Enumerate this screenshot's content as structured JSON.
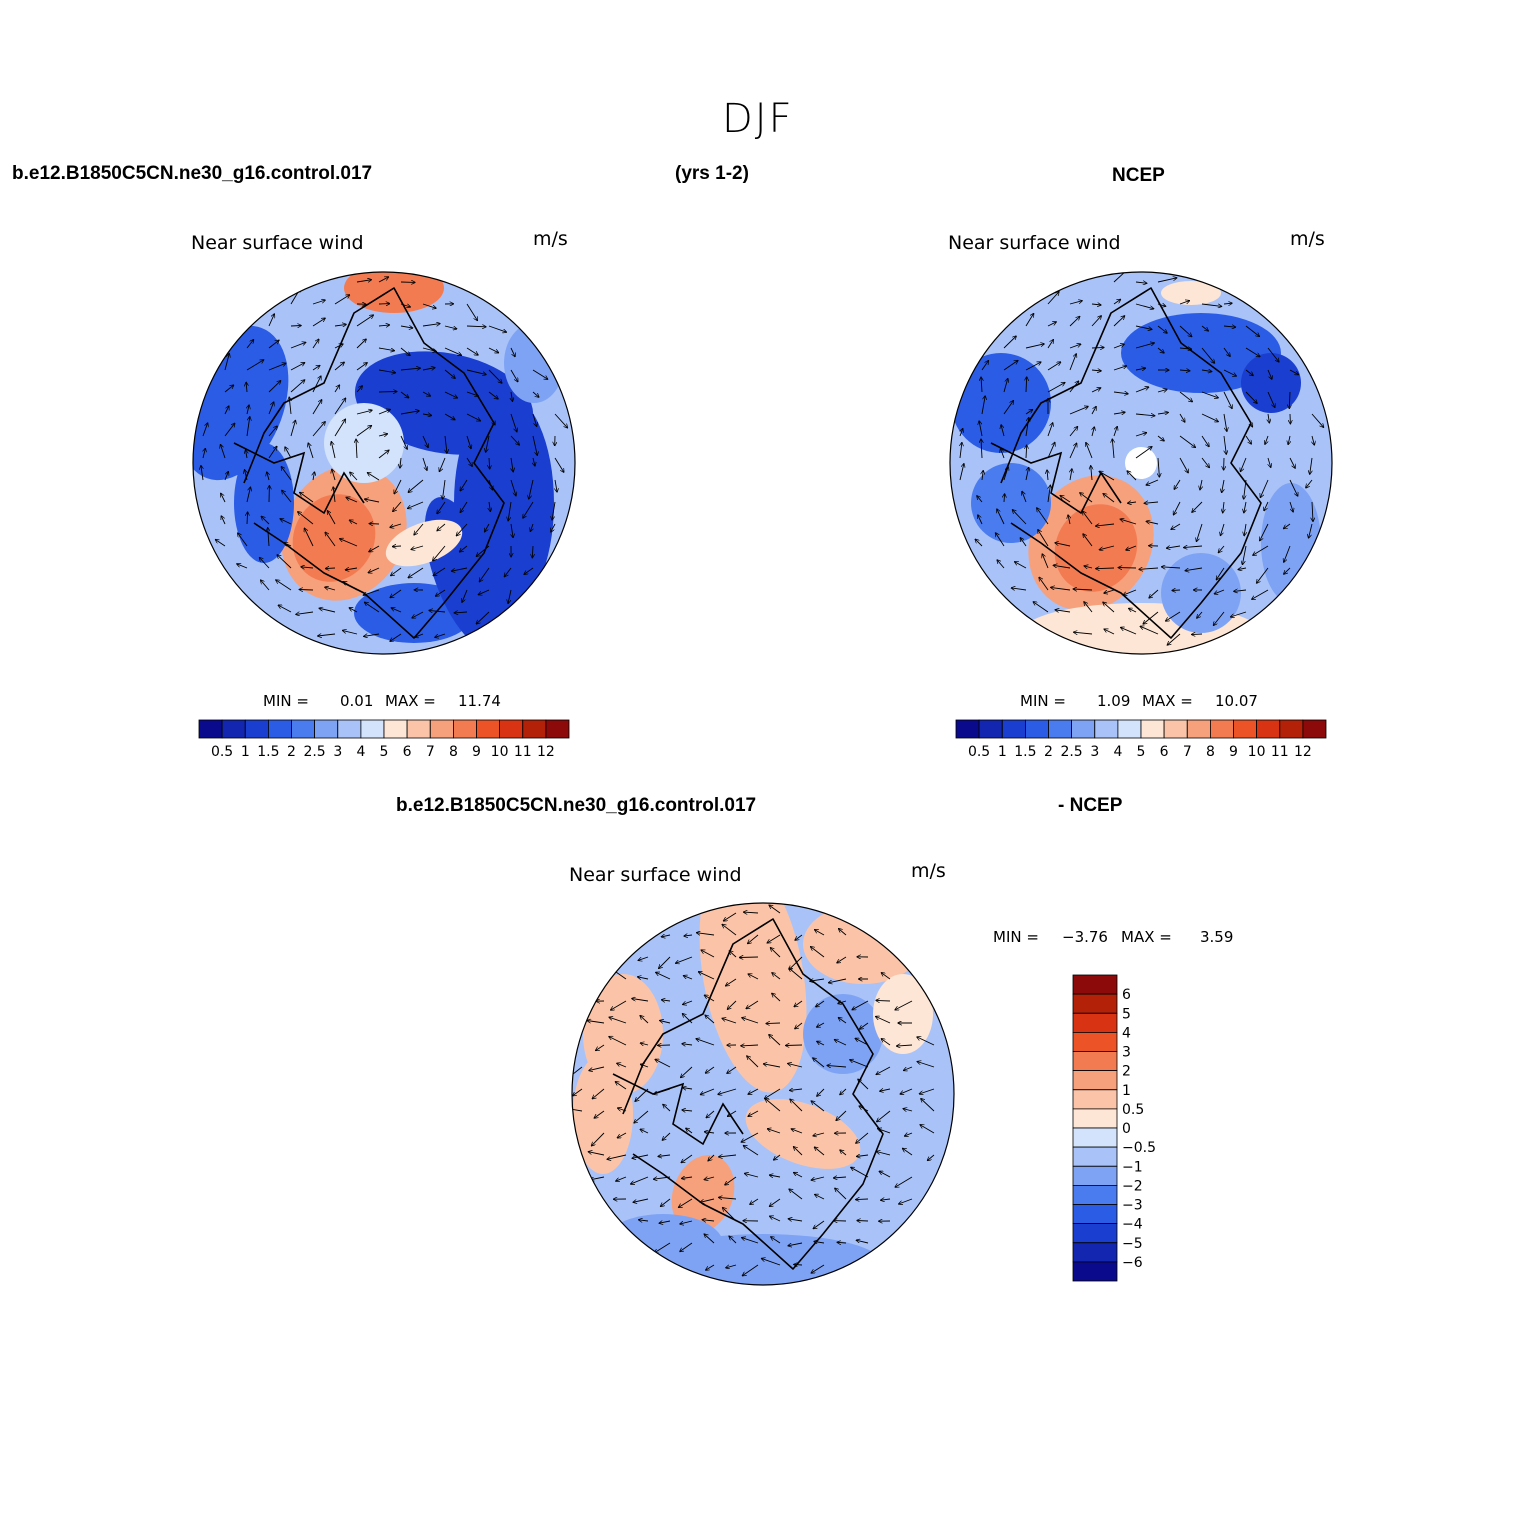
{
  "page": {
    "title": "DJF",
    "top_left_header": "b.e12.B1850C5CN.ne30_g16.control.017",
    "top_center_header": "(yrs 1-2)",
    "top_right_header": "NCEP",
    "bottom_left_header": "b.e12.B1850C5CN.ne30_g16.control.017",
    "bottom_right_header": "- NCEP"
  },
  "colors": {
    "abs_palette": [
      "#0a0a8c",
      "#1226b0",
      "#1a3fd0",
      "#2b5ce6",
      "#4a7cf0",
      "#7fa3f4",
      "#a9c3f8",
      "#d2e3fb",
      "#fde6d6",
      "#fbc4a8",
      "#f7a07c",
      "#f37b52",
      "#ec5428",
      "#d83413",
      "#b32208",
      "#8c0a0a"
    ],
    "diff_palette": [
      "#0a0a8c",
      "#1226b0",
      "#1a3fd0",
      "#2b5ce6",
      "#4a7cf0",
      "#7fa3f4",
      "#a9c3f8",
      "#d2e3fb",
      "#fde6d6",
      "#fbc4a8",
      "#f7a07c",
      "#f37b52",
      "#ec5428",
      "#d83413",
      "#b32208",
      "#8c0a0a"
    ]
  },
  "chart_data": [
    {
      "type": "heatmap",
      "projection": "north-polar-stereographic",
      "title": "Near surface wind",
      "units": "m/s",
      "min_label": "MIN =",
      "min_value": "0.01",
      "max_label": "MAX =",
      "max_value": "11.74",
      "colorbar_ticks": [
        "0.5",
        "1",
        "1.5",
        "2",
        "2.5",
        "3",
        "4",
        "5",
        "6",
        "7",
        "8",
        "9",
        "10",
        "11",
        "12"
      ],
      "levels": [
        0.5,
        1,
        1.5,
        2,
        2.5,
        3,
        4,
        5,
        6,
        7,
        8,
        9,
        10,
        11,
        12
      ],
      "vectors": "wind-direction arrows overlay"
    },
    {
      "type": "heatmap",
      "projection": "north-polar-stereographic",
      "title": "Near surface wind",
      "units": "m/s",
      "min_label": "MIN =",
      "min_value": "1.09",
      "max_label": "MAX =",
      "max_value": "10.07",
      "colorbar_ticks": [
        "0.5",
        "1",
        "1.5",
        "2",
        "2.5",
        "3",
        "4",
        "5",
        "6",
        "7",
        "8",
        "9",
        "10",
        "11",
        "12"
      ],
      "levels": [
        0.5,
        1,
        1.5,
        2,
        2.5,
        3,
        4,
        5,
        6,
        7,
        8,
        9,
        10,
        11,
        12
      ],
      "vectors": "wind-direction arrows overlay"
    },
    {
      "type": "heatmap",
      "projection": "north-polar-stereographic",
      "title": "Near surface wind",
      "units": "m/s",
      "min_label": "MIN =",
      "min_value": "−3.76",
      "max_label": "MAX =",
      "max_value": "3.59",
      "colorbar_ticks": [
        "6",
        "5",
        "4",
        "3",
        "2",
        "1",
        "0.5",
        "0",
        "−0.5",
        "−1",
        "−2",
        "−3",
        "−4",
        "−5",
        "−6"
      ],
      "levels": [
        -6,
        -5,
        -4,
        -3,
        -2,
        -1,
        -0.5,
        0,
        0.5,
        1,
        2,
        3,
        4,
        5,
        6
      ],
      "vectors": "wind-difference arrows overlay"
    }
  ]
}
